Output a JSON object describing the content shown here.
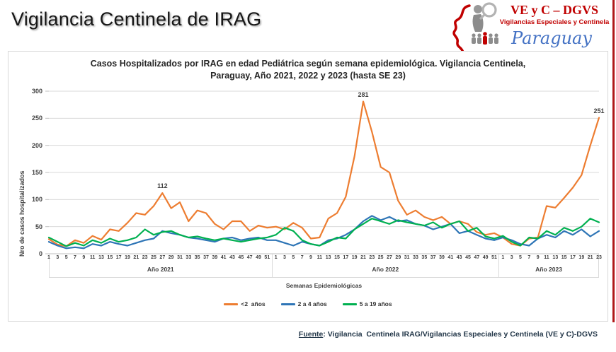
{
  "page": {
    "title": "Vigilancia Centinela de IRAG"
  },
  "logo": {
    "org": "VE y C – DGVS",
    "subtitle": "Vigilancias Especiales y Centinela",
    "country": "Paraguay",
    "org_color": "#C00000",
    "country_color": "#4472C4"
  },
  "chart": {
    "title": "Casos Hospitalizados por IRAG en edad Pediátrica según semana epidemiológica. Vigilancia Centinela,\nParaguay, Año 2021, 2022 y 2023 (hasta SE 23)",
    "y_axis_label": "Nro de casos hospitalizados",
    "x_axis_label": "Semanas Epidemiológicas"
  },
  "chart_data": {
    "type": "line",
    "title": "Casos Hospitalizados por IRAG en edad Pediátrica según semana epidemiológica. Vigilancia Centinela, Paraguay, Año 2021, 2022 y 2023 (hasta SE 23)",
    "xlabel": "Semanas Epidemiológicas",
    "ylabel": "Nro de casos hospitalizados",
    "ylim": [
      0,
      300
    ],
    "y_ticks": [
      0,
      50,
      100,
      150,
      200,
      250,
      300
    ],
    "grid": true,
    "legend_position": "bottom",
    "grid_color": "#d9d9d9",
    "axis_color": "#bfbfbf",
    "x_groups": [
      {
        "label": "Año 2021",
        "weeks": [
          1,
          3,
          5,
          7,
          9,
          11,
          13,
          15,
          17,
          19,
          21,
          23,
          25,
          27,
          29,
          31,
          33,
          35,
          37,
          39,
          41,
          43,
          45,
          47,
          49,
          51
        ]
      },
      {
        "label": "Año 2022",
        "weeks": [
          1,
          3,
          5,
          7,
          9,
          11,
          13,
          15,
          17,
          19,
          21,
          23,
          25,
          27,
          29,
          31,
          33,
          35,
          37,
          39,
          41,
          43,
          45,
          47,
          49,
          51
        ]
      },
      {
        "label": "Año 2023",
        "weeks": [
          1,
          3,
          5,
          7,
          9,
          11,
          13,
          15,
          17,
          19,
          21,
          23
        ]
      }
    ],
    "series": [
      {
        "name": "<2  años",
        "color": "#ED7D31",
        "values": [
          27,
          17,
          14,
          25,
          20,
          33,
          26,
          45,
          42,
          57,
          75,
          72,
          88,
          112,
          84,
          95,
          60,
          80,
          75,
          55,
          45,
          60,
          60,
          42,
          52,
          48,
          50,
          45,
          57,
          48,
          28,
          30,
          65,
          75,
          105,
          180,
          281,
          225,
          160,
          150,
          98,
          72,
          80,
          68,
          62,
          68,
          55,
          60,
          55,
          40,
          35,
          38,
          30,
          18,
          15,
          28,
          30,
          88,
          85,
          103,
          122,
          145,
          200,
          251
        ]
      },
      {
        "name": "2 a 4 años",
        "color": "#2E75B6",
        "values": [
          22,
          15,
          10,
          12,
          10,
          18,
          15,
          22,
          18,
          15,
          20,
          25,
          28,
          42,
          38,
          35,
          30,
          28,
          25,
          22,
          28,
          30,
          25,
          28,
          30,
          25,
          25,
          20,
          15,
          22,
          18,
          15,
          25,
          28,
          35,
          45,
          60,
          70,
          62,
          68,
          60,
          62,
          55,
          52,
          45,
          50,
          55,
          38,
          42,
          35,
          28,
          25,
          30,
          25,
          18,
          15,
          28,
          35,
          30,
          42,
          35,
          45,
          32,
          42
        ]
      },
      {
        "name": "5 a 19 años",
        "color": "#00B050",
        "values": [
          30,
          22,
          14,
          20,
          15,
          25,
          20,
          28,
          22,
          25,
          30,
          45,
          35,
          40,
          42,
          35,
          30,
          32,
          28,
          25,
          28,
          25,
          22,
          25,
          28,
          30,
          35,
          48,
          42,
          25,
          18,
          15,
          22,
          30,
          28,
          45,
          55,
          65,
          60,
          55,
          62,
          58,
          55,
          52,
          58,
          48,
          55,
          60,
          42,
          48,
          32,
          28,
          33,
          22,
          15,
          30,
          28,
          42,
          35,
          48,
          42,
          50,
          65,
          58
        ]
      }
    ],
    "annotations": [
      {
        "label": "112",
        "series": 0,
        "index": 13
      },
      {
        "label": "281",
        "series": 0,
        "index": 36
      },
      {
        "label": "251",
        "series": 0,
        "index": 63
      }
    ]
  },
  "footer": {
    "source_label": "Fuente",
    "source_rest": ": Vigilancia  Centinela IRAG/Vigilancias Especiales y Centinela (VE y C)-DGVS"
  }
}
